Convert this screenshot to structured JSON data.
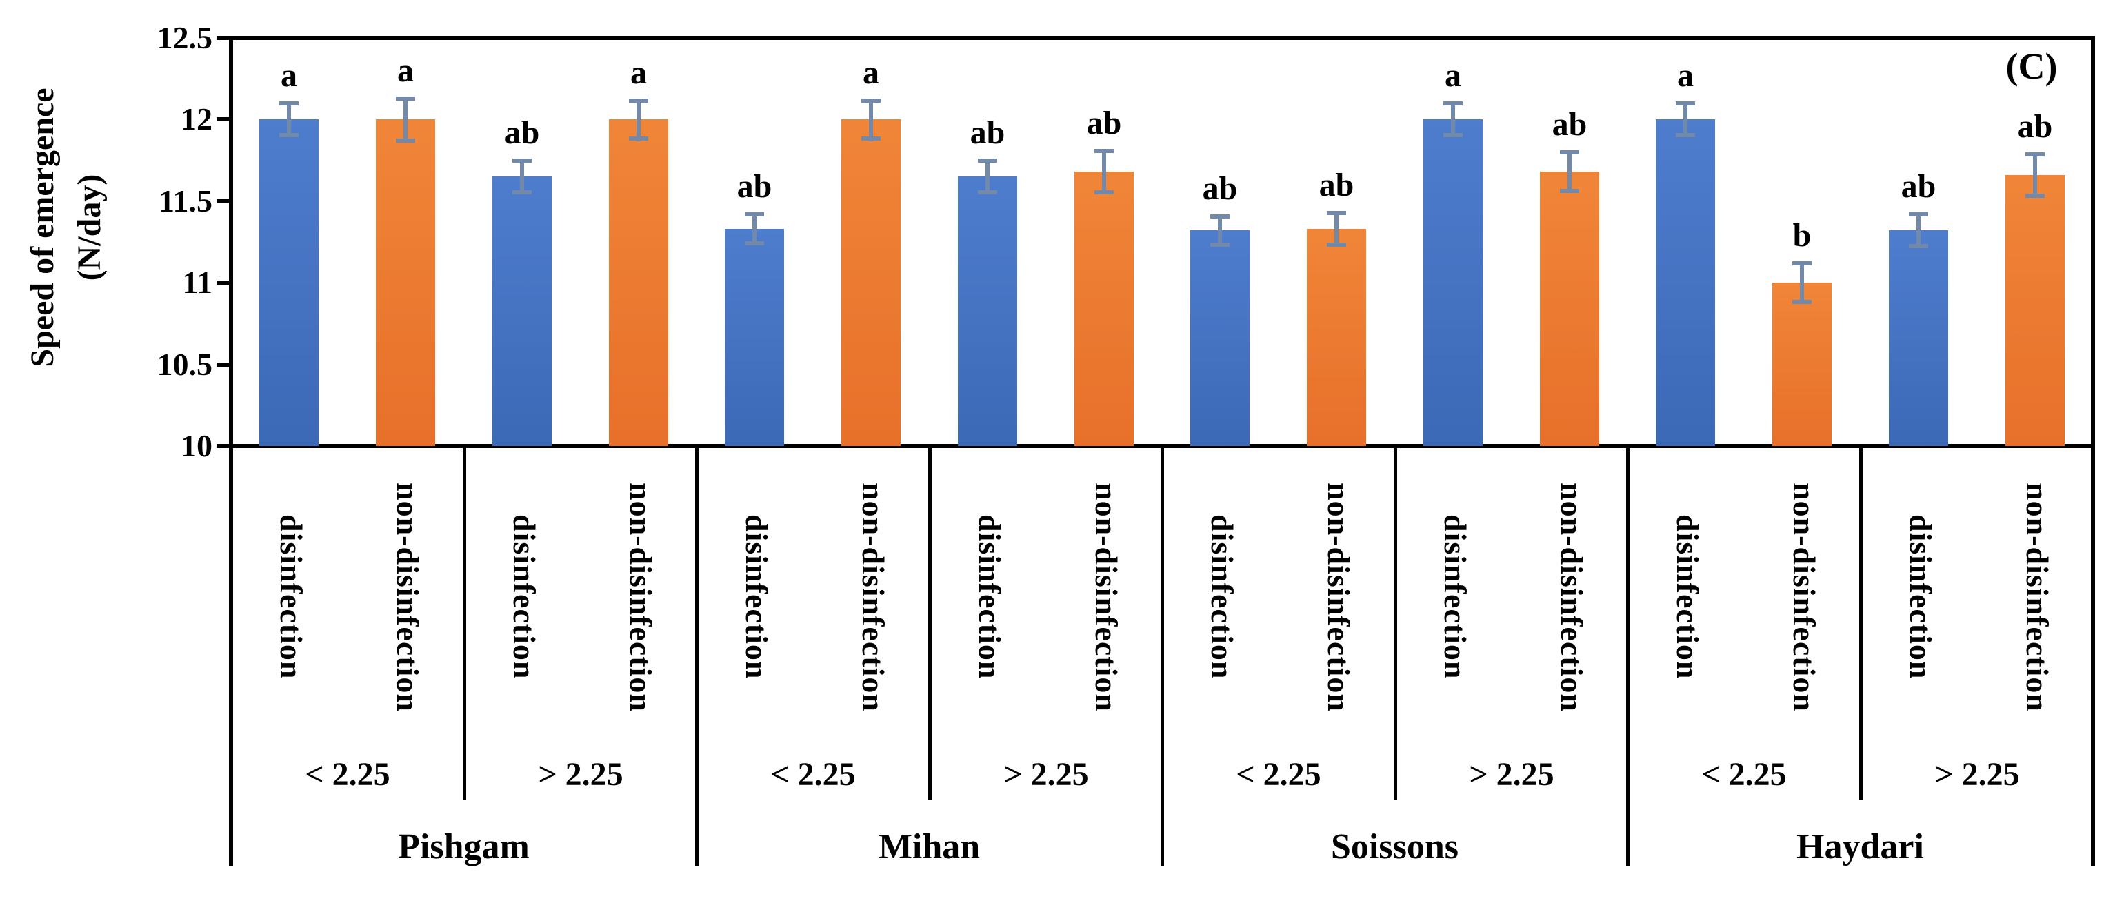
{
  "chart_data": {
    "type": "bar",
    "title": "",
    "panel_label": "(C)",
    "ylabel_line1": "Speed of emergence",
    "ylabel_line2": "(N/day)",
    "xlabel": "",
    "y_axis": {
      "min": 10,
      "max": 12.5,
      "step": 0.5,
      "tick_labels": [
        "12.5",
        "12",
        "11.5",
        "11",
        "10.5",
        "10"
      ]
    },
    "grid": false,
    "legend_position": "none",
    "axis_color": "#000000",
    "error_bar_color": "#7389A9",
    "series": [
      {
        "name": "disinfection",
        "color": "#4472C4",
        "gradient_top": "#4F7DCE",
        "gradient_bottom": "#3C69B6"
      },
      {
        "name": "non-disinfection",
        "color": "#ED7D31",
        "gradient_top": "#F08538",
        "gradient_bottom": "#E8702A"
      }
    ],
    "groups": [
      {
        "cultivar": "Pishgam",
        "subgroups": [
          {
            "label": "< 2.25",
            "bars": [
              {
                "treatment": "disinfection",
                "value": 12.0,
                "error": 0.11,
                "letter": "a"
              },
              {
                "treatment": "non-disinfection",
                "value": 12.0,
                "error": 0.14,
                "letter": "a"
              }
            ]
          },
          {
            "label": "> 2.25",
            "bars": [
              {
                "treatment": "disinfection",
                "value": 11.65,
                "error": 0.11,
                "letter": "ab"
              },
              {
                "treatment": "non-disinfection",
                "value": 12.0,
                "error": 0.13,
                "letter": "a"
              }
            ]
          }
        ]
      },
      {
        "cultivar": "Mihan",
        "subgroups": [
          {
            "label": "< 2.25",
            "bars": [
              {
                "treatment": "disinfection",
                "value": 11.33,
                "error": 0.1,
                "letter": "ab"
              },
              {
                "treatment": "non-disinfection",
                "value": 12.0,
                "error": 0.13,
                "letter": "a"
              }
            ]
          },
          {
            "label": "> 2.25",
            "bars": [
              {
                "treatment": "disinfection",
                "value": 11.65,
                "error": 0.11,
                "letter": "ab"
              },
              {
                "treatment": "non-disinfection",
                "value": 11.68,
                "error": 0.14,
                "letter": "ab"
              }
            ]
          }
        ]
      },
      {
        "cultivar": "Soissons",
        "subgroups": [
          {
            "label": "< 2.25",
            "bars": [
              {
                "treatment": "disinfection",
                "value": 11.32,
                "error": 0.1,
                "letter": "ab"
              },
              {
                "treatment": "non-disinfection",
                "value": 11.33,
                "error": 0.11,
                "letter": "ab"
              }
            ]
          },
          {
            "label": "> 2.25",
            "bars": [
              {
                "treatment": "disinfection",
                "value": 12.0,
                "error": 0.11,
                "letter": "a"
              },
              {
                "treatment": "non-disinfection",
                "value": 11.68,
                "error": 0.13,
                "letter": "ab"
              }
            ]
          }
        ]
      },
      {
        "cultivar": "Haydari",
        "subgroups": [
          {
            "label": "< 2.25",
            "bars": [
              {
                "treatment": "disinfection",
                "value": 12.0,
                "error": 0.11,
                "letter": "a"
              },
              {
                "treatment": "non-disinfection",
                "value": 11.0,
                "error": 0.13,
                "letter": "b"
              }
            ]
          },
          {
            "label": "> 2.25",
            "bars": [
              {
                "treatment": "disinfection",
                "value": 11.32,
                "error": 0.11,
                "letter": "ab"
              },
              {
                "treatment": "non-disinfection",
                "value": 11.66,
                "error": 0.14,
                "letter": "ab"
              }
            ]
          }
        ]
      }
    ]
  }
}
